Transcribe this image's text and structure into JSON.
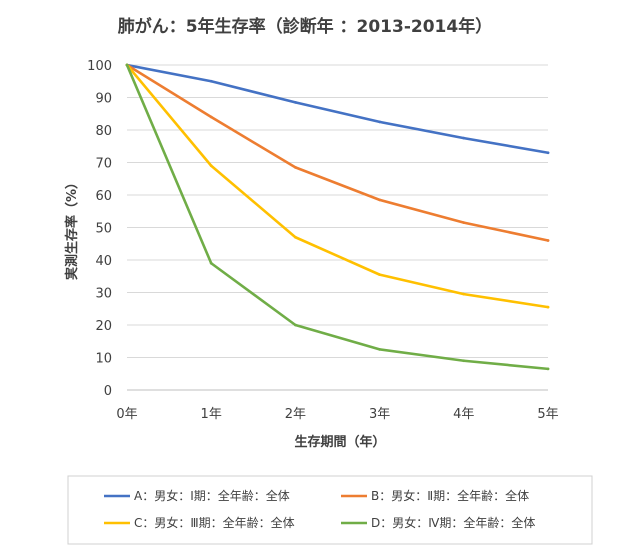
{
  "chart_data": {
    "type": "line",
    "title": "肺がん：5年生存率（診断年 ：2013-2014年）",
    "xlabel": "生存期間（年）",
    "ylabel": "実測生存率（%）",
    "categories": [
      "0年",
      "1年",
      "2年",
      "3年",
      "4年",
      "5年"
    ],
    "ylim": [
      0,
      100
    ],
    "yticks": [
      0,
      10,
      20,
      30,
      40,
      50,
      60,
      70,
      80,
      90,
      100
    ],
    "grid": true,
    "legend_position": "bottom",
    "series": [
      {
        "name": "A：男女：Ⅰ期：全年齢：全体",
        "color": "#4472C4",
        "values": [
          100,
          95,
          88.5,
          82.5,
          77.5,
          73
        ]
      },
      {
        "name": "B：男女：Ⅱ期：全年齢：全体",
        "color": "#ED7D31",
        "values": [
          100,
          84,
          68.5,
          58.5,
          51.5,
          46
        ]
      },
      {
        "name": "C：男女：Ⅲ期：全年齢：全体",
        "color": "#FFC000",
        "values": [
          100,
          69,
          47,
          35.5,
          29.5,
          25.5
        ]
      },
      {
        "name": "D：男女：Ⅳ期：全年齢：全体",
        "color": "#70AD47",
        "values": [
          100,
          39,
          20,
          12.5,
          9,
          6.5
        ]
      }
    ]
  }
}
